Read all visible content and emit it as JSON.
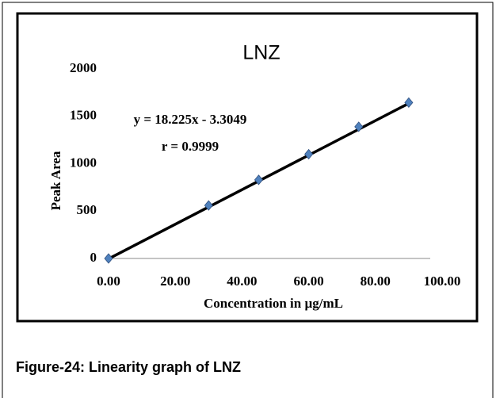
{
  "chart_data": {
    "type": "scatter",
    "title": "LNZ",
    "x_label": "Concentration in µg/mL",
    "y_label": "Peak Area",
    "x": [
      0,
      30,
      45,
      60,
      75,
      90
    ],
    "series": [
      {
        "color": "#4f81bd",
        "values": [
          0,
          560,
          830,
          1100,
          1390,
          1645
        ]
      }
    ],
    "trendline": {
      "slope": 18.225,
      "intercept": -3.3049,
      "color": "#000000",
      "label": "y = 18.225x - 3.3049"
    },
    "r_label": "r = 0.9999",
    "xlim": [
      0,
      100
    ],
    "xticks": [
      {
        "value": 0,
        "label": "0.00"
      },
      {
        "value": 20,
        "label": "20.00"
      },
      {
        "value": 40,
        "label": "40.00"
      },
      {
        "value": 60,
        "label": "60.00"
      },
      {
        "value": 80,
        "label": "80.00"
      },
      {
        "value": 100,
        "label": "100.00"
      }
    ],
    "ylim": [
      0,
      2000
    ],
    "yticks": [
      0,
      500,
      1000,
      1500,
      2000
    ],
    "grid": false
  },
  "caption": "Figure-24: Linearity graph of LNZ"
}
